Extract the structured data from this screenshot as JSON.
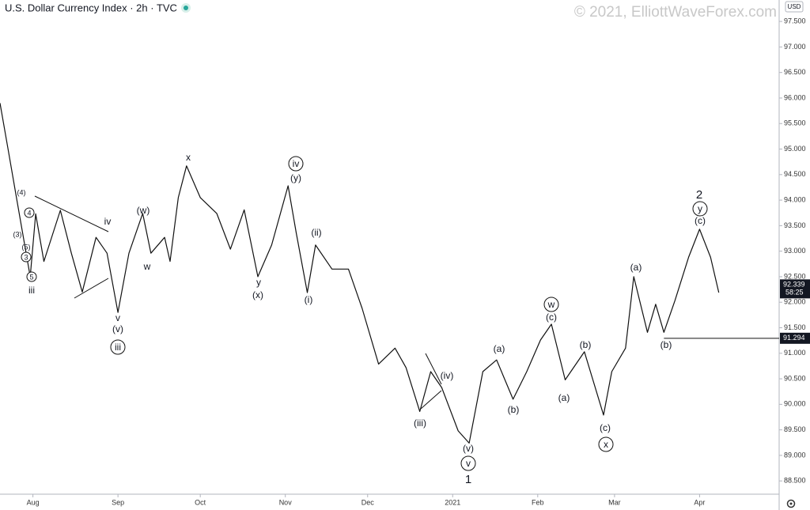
{
  "chart_data": {
    "type": "line",
    "title": "U.S. Dollar Currency Index · 2h · TVC",
    "watermark": "© 2021, ElliottWaveForex.com",
    "currency": "USD",
    "color": "#111111",
    "x": [
      -12,
      -9,
      -6,
      -1,
      1,
      4,
      10,
      14,
      18,
      23,
      27,
      31,
      35,
      40,
      43,
      48,
      50,
      53,
      56,
      61,
      67,
      72,
      77,
      82,
      87,
      93,
      96,
      100,
      103,
      109,
      115,
      120,
      126,
      132,
      136,
      141,
      145,
      149,
      155,
      159,
      164,
      169,
      175,
      180,
      185,
      189,
      194,
      201,
      208,
      211,
      216,
      219,
      224,
      227,
      230,
      234,
      239,
      243,
      247,
      250
    ],
    "values": [
      95.9,
      94.98,
      94.05,
      92.5,
      93.73,
      92.8,
      93.8,
      92.96,
      92.2,
      93.27,
      92.96,
      91.8,
      92.96,
      93.74,
      92.96,
      93.27,
      92.8,
      94.05,
      94.67,
      94.05,
      93.74,
      93.04,
      93.81,
      92.5,
      93.12,
      94.28,
      93.35,
      92.19,
      93.12,
      92.65,
      92.65,
      91.88,
      90.79,
      91.1,
      90.72,
      89.86,
      90.64,
      90.33,
      89.48,
      89.24,
      90.64,
      90.87,
      90.1,
      90.64,
      91.26,
      91.57,
      90.48,
      91.03,
      89.79,
      90.64,
      91.1,
      92.5,
      91.41,
      91.96,
      91.41,
      92.03,
      92.88,
      93.43,
      92.88,
      92.19
    ],
    "xlim": [
      -12,
      272
    ],
    "ylim": [
      88.24,
      97.92
    ],
    "xticks": [
      {
        "value": 0,
        "label": "Aug"
      },
      {
        "value": 31,
        "label": "Sep"
      },
      {
        "value": 61,
        "label": "Oct"
      },
      {
        "value": 92,
        "label": "Nov"
      },
      {
        "value": 122,
        "label": "Dec"
      },
      {
        "value": 153,
        "label": "2021"
      },
      {
        "value": 184,
        "label": "Feb"
      },
      {
        "value": 212,
        "label": "Mar"
      },
      {
        "value": 243,
        "label": "Apr"
      }
    ],
    "yticks": [
      {
        "value": 88.5,
        "label": "88.500"
      },
      {
        "value": 89,
        "label": "89.000"
      },
      {
        "value": 89.5,
        "label": "89.500"
      },
      {
        "value": 90,
        "label": "90.000"
      },
      {
        "value": 90.5,
        "label": "90.500"
      },
      {
        "value": 91,
        "label": "91.000"
      },
      {
        "value": 91.5,
        "label": "91.500"
      },
      {
        "value": 92,
        "label": "92.000"
      },
      {
        "value": 92.5,
        "label": "92.500"
      },
      {
        "value": 93,
        "label": "93.000"
      },
      {
        "value": 93.5,
        "label": "93.500"
      },
      {
        "value": 94,
        "label": "94.000"
      },
      {
        "value": 94.5,
        "label": "94.500"
      },
      {
        "value": 95,
        "label": "95.000"
      },
      {
        "value": 95.5,
        "label": "95.500"
      },
      {
        "value": 96,
        "label": "96.000"
      },
      {
        "value": 96.5,
        "label": "96.500"
      },
      {
        "value": 97,
        "label": "97.000"
      },
      {
        "value": 97.5,
        "label": "97.500"
      }
    ],
    "hline": {
      "value": 91.294,
      "label": "91.294",
      "from_x": 230
    },
    "last_price": {
      "value": 92.339,
      "label": "92.339"
    },
    "countdown": "58:25",
    "annotations": [
      {
        "text": "(4)",
        "circled": false
      },
      {
        "text": "4",
        "circled": true
      },
      {
        "text": "(3)",
        "circled": false
      },
      {
        "text": "(5)",
        "circled": false
      },
      {
        "text": "3",
        "circled": true
      },
      {
        "text": "5",
        "circled": true
      },
      {
        "text": "iii",
        "circled": false
      },
      {
        "text": "iv",
        "circled": false
      },
      {
        "text": "v",
        "circled": false
      },
      {
        "text": "(v)",
        "circled": false
      },
      {
        "text": "iii",
        "circled": true
      },
      {
        "text": "(w)",
        "circled": false
      },
      {
        "text": "w",
        "circled": false
      },
      {
        "text": "x",
        "circled": false
      },
      {
        "text": "iv",
        "circled": true
      },
      {
        "text": "(y)",
        "circled": false
      },
      {
        "text": "y",
        "circled": false
      },
      {
        "text": "(x)",
        "circled": false
      },
      {
        "text": "(ii)",
        "circled": false
      },
      {
        "text": "(i)",
        "circled": false
      },
      {
        "text": "(iv)",
        "circled": false
      },
      {
        "text": "(iii)",
        "circled": false
      },
      {
        "text": "(v)",
        "circled": false
      },
      {
        "text": "v",
        "circled": true
      },
      {
        "text": "1",
        "circled": false
      },
      {
        "text": "(a)",
        "circled": false
      },
      {
        "text": "(b)",
        "circled": false
      },
      {
        "text": "w",
        "circled": true
      },
      {
        "text": "(c)",
        "circled": false
      },
      {
        "text": "(a)",
        "circled": false
      },
      {
        "text": "(b)",
        "circled": false
      },
      {
        "text": "(c)",
        "circled": false
      },
      {
        "text": "x",
        "circled": true
      },
      {
        "text": "(a)",
        "circled": false
      },
      {
        "text": "(b)",
        "circled": false
      },
      {
        "text": "2",
        "circled": false
      },
      {
        "text": "y",
        "circled": true
      },
      {
        "text": "(c)",
        "circled": false
      }
    ]
  }
}
